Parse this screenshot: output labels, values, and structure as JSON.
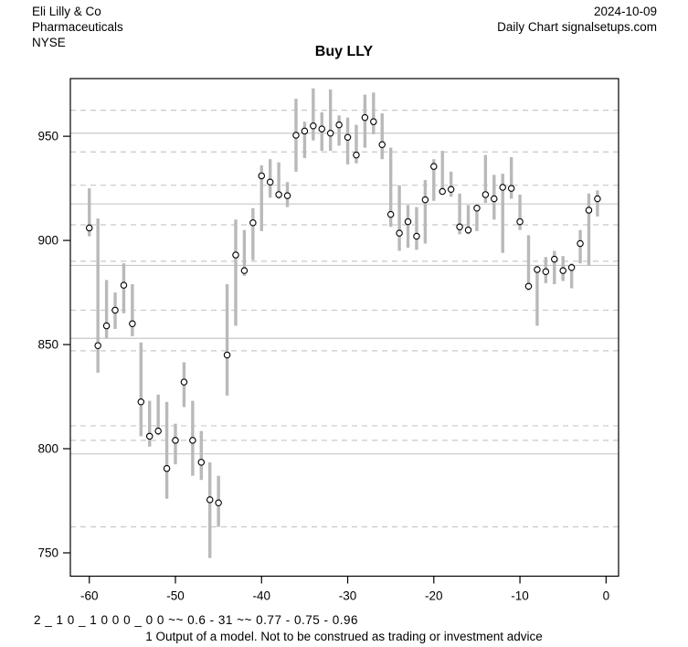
{
  "header": {
    "company": "Eli Lilly & Co",
    "sector": "Pharmaceuticals",
    "exchange": "NYSE",
    "date": "2024-10-09",
    "chart_label": "Daily Chart signalsetups.com"
  },
  "title": "Buy LLY",
  "footer": {
    "model_output": "2 _ 1 0 _ 1 0 0 0 _ 0 0 ~~ 0.6 - 31 ~~ 0.77 - 0.75 - 0.96",
    "disclaimer": "1 Output of a model. Not to be construed as trading or investment advice"
  },
  "chart_data": {
    "type": "ohlc-range",
    "title": "Buy LLY",
    "xlabel": "",
    "ylabel": "",
    "description": "Daily high-low range bars (gray) with open-circle close markers for LLY over the last 60 sessions",
    "x_ticks": [
      -60,
      -50,
      -40,
      -30,
      -20,
      -10,
      0
    ],
    "y_ticks": [
      750,
      800,
      850,
      900,
      950
    ],
    "xlim": [
      -62.2,
      1.45
    ],
    "ylim": [
      738.8,
      977.7
    ],
    "grid_on": true,
    "legend": "none",
    "solid_levels": [
      951.5,
      917.5,
      888,
      853,
      797.5
    ],
    "dashed_levels": [
      962.5,
      942.5,
      926.5,
      907.5,
      890,
      866.5,
      847,
      811,
      804,
      762.5
    ],
    "colors": {
      "bar": "#b9b9b9",
      "grid": "#c8c8c8",
      "axis": "#000000",
      "marker_stroke": "#000000",
      "marker_fill": "#ffffff"
    },
    "bars_format": [
      "day",
      "high",
      "low",
      "close"
    ],
    "bars": [
      [
        -60,
        925,
        902,
        906
      ],
      [
        -59,
        910.5,
        836.5,
        849.5
      ],
      [
        -58,
        881,
        853,
        859
      ],
      [
        -57,
        875,
        857.5,
        866.5
      ],
      [
        -56,
        889,
        865,
        878.5
      ],
      [
        -55,
        879,
        854,
        860
      ],
      [
        -54,
        851,
        806,
        822.5
      ],
      [
        -53,
        823,
        801,
        806
      ],
      [
        -52,
        826,
        806.5,
        808.5
      ],
      [
        -51,
        822.5,
        776,
        790.5
      ],
      [
        -50,
        812,
        792.5,
        804
      ],
      [
        -49,
        841.5,
        820,
        832
      ],
      [
        -48,
        823,
        787,
        804
      ],
      [
        -47,
        808.5,
        785,
        793.5
      ],
      [
        -46,
        793.5,
        747.5,
        775.5
      ],
      [
        -45,
        787,
        762.5,
        774
      ],
      [
        -44,
        879,
        825.5,
        845
      ],
      [
        -43,
        910,
        859,
        893
      ],
      [
        -42,
        905,
        883,
        885.5
      ],
      [
        -41,
        915.5,
        890.5,
        908.5
      ],
      [
        -40,
        936,
        904.5,
        931
      ],
      [
        -39,
        939,
        920.5,
        928
      ],
      [
        -38,
        937.5,
        920,
        922
      ],
      [
        -37,
        928,
        916,
        921.5
      ],
      [
        -36,
        968,
        933,
        950.5
      ],
      [
        -35,
        957,
        939.5,
        952.5
      ],
      [
        -34,
        973,
        948,
        955
      ],
      [
        -33,
        961.5,
        943,
        953.5
      ],
      [
        -32,
        972.5,
        943,
        951.5
      ],
      [
        -31,
        960,
        945.5,
        955.5
      ],
      [
        -30,
        959,
        936.5,
        949.5
      ],
      [
        -29,
        955.5,
        937,
        941
      ],
      [
        -28,
        970,
        944.5,
        959
      ],
      [
        -27,
        971,
        951,
        957
      ],
      [
        -26,
        961,
        939,
        946
      ],
      [
        -25,
        944.5,
        906.5,
        912.5
      ],
      [
        -24,
        926.5,
        895,
        903.5
      ],
      [
        -23,
        917,
        896.5,
        909
      ],
      [
        -22,
        916,
        895.5,
        902
      ],
      [
        -21,
        929,
        898.5,
        919.5
      ],
      [
        -20,
        939,
        919,
        935.5
      ],
      [
        -19,
        943,
        922,
        923.5
      ],
      [
        -18,
        933,
        921,
        924.5
      ],
      [
        -17,
        922.5,
        903,
        906.5
      ],
      [
        -16,
        917,
        903,
        905
      ],
      [
        -15,
        916,
        904.5,
        915.5
      ],
      [
        -14,
        941,
        918,
        922
      ],
      [
        -13,
        931.5,
        910,
        920
      ],
      [
        -12,
        932,
        894,
        925.5
      ],
      [
        -11,
        940,
        920,
        925
      ],
      [
        -10,
        922,
        905,
        909
      ],
      [
        -9,
        902.5,
        876,
        878
      ],
      [
        -8,
        888,
        859,
        886
      ],
      [
        -7,
        892,
        879.5,
        885
      ],
      [
        -6,
        895,
        879,
        891
      ],
      [
        -5,
        892.5,
        880.5,
        885.5
      ],
      [
        -4,
        889,
        877,
        887
      ],
      [
        -3,
        905,
        889,
        898.5
      ],
      [
        -2,
        922.5,
        888,
        914.5
      ],
      [
        -1,
        924,
        911.5,
        920
      ]
    ]
  }
}
